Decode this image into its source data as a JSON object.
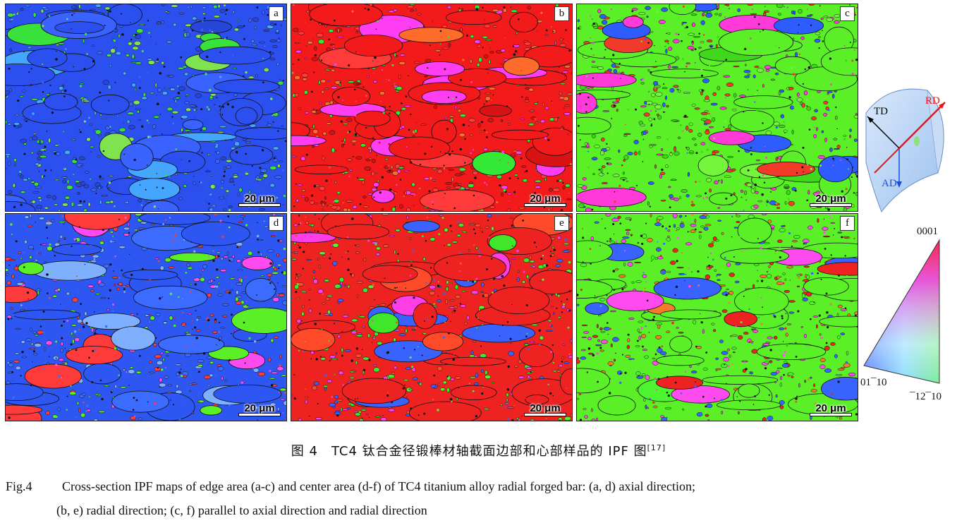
{
  "panels": [
    {
      "id": "a",
      "scale": "20 μm",
      "base": "#2c4ff0",
      "alt": [
        "#3a62ff",
        "#2846d8",
        "#7fe34f",
        "#39e23a",
        "#44a6ff"
      ],
      "dominant": "blue"
    },
    {
      "id": "b",
      "scale": "20 μm",
      "base": "#f21a1a",
      "alt": [
        "#ff3a3a",
        "#d81313",
        "#ff3df2",
        "#34e836",
        "#ff6b2a"
      ],
      "dominant": "red"
    },
    {
      "id": "c",
      "scale": "20 μm",
      "base": "#5aef27",
      "alt": [
        "#74f53b",
        "#3fd81a",
        "#f23a2a",
        "#ff3ad9",
        "#2e5cff"
      ],
      "dominant": "green"
    },
    {
      "id": "d",
      "scale": "20 μm",
      "base": "#2d56f2",
      "alt": [
        "#3c6bff",
        "#7fb0ff",
        "#5aef27",
        "#ff3a3a",
        "#ff4af0"
      ],
      "dominant": "blue"
    },
    {
      "id": "e",
      "scale": "20 μm",
      "base": "#ef2222",
      "alt": [
        "#5aef27",
        "#ff4a2a",
        "#3fe62b",
        "#ff3de6",
        "#3a62ff"
      ],
      "dominant": "red-green"
    },
    {
      "id": "f",
      "scale": "20 μm",
      "base": "#5aef27",
      "alt": [
        "#ef2222",
        "#ff4af0",
        "#4cf530",
        "#3a62ff",
        "#f57a2a"
      ],
      "dominant": "green-red"
    }
  ],
  "sample_axes": {
    "rd": "RD",
    "td": "TD",
    "ad": "AD",
    "rd_color": "#e11",
    "ad_color": "#1a4fe0",
    "td_color": "#000"
  },
  "ipf_legend": {
    "top": "0001",
    "left": "01¯10",
    "right": "¯12¯10"
  },
  "caption": {
    "cn": "图 4　TC4 钛合金径锻棒材轴截面边部和心部样品的 IPF 图",
    "cn_ref": "[17]",
    "en_fig": "Fig.4",
    "en_line1": "Cross-section IPF maps of edge area (a-c) and center area (d-f) of TC4 titanium alloy radial forged bar: (a, d) axial direction;",
    "en_line2": "(b, e) radial direction; (c, f) parallel to axial direction and radial direction"
  }
}
